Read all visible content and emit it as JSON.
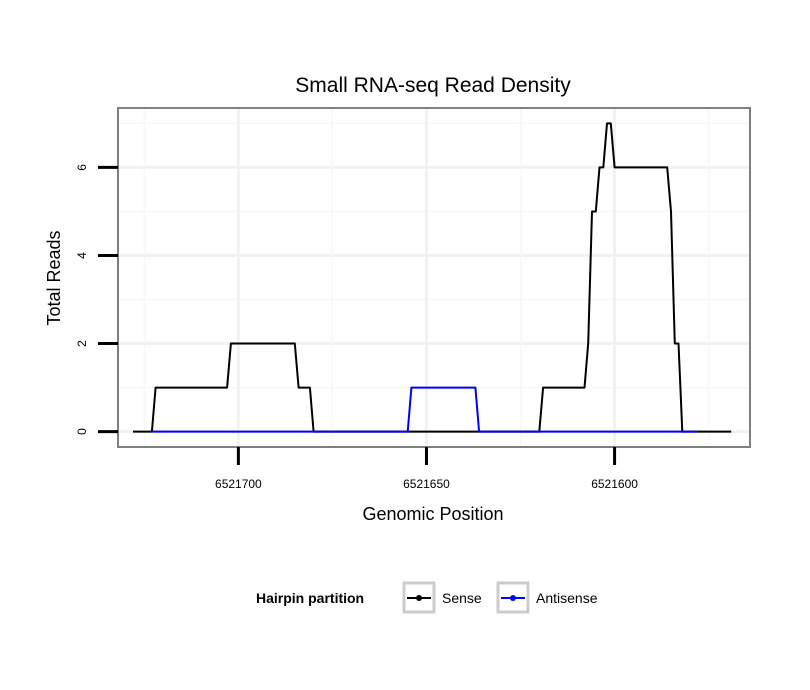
{
  "chart_data": {
    "type": "line",
    "title": "Small RNA-seq Read Density",
    "xlabel": "Genomic Position",
    "ylabel": "Total Reads",
    "x_reversed": true,
    "xlim": [
      6521732,
      6521564
    ],
    "ylim": [
      -0.35,
      7.35
    ],
    "x_ticks": [
      6521700,
      6521650,
      6521600
    ],
    "x_tick_labels": [
      "6521700",
      "6521650",
      "6521600"
    ],
    "y_ticks": [
      0,
      2,
      4,
      6
    ],
    "y_tick_labels": [
      "0",
      "2",
      "4",
      "6"
    ],
    "grid": true,
    "legend": {
      "title": "Hairpin partition",
      "position": "bottom",
      "entries": [
        "Sense",
        "Antisense"
      ]
    },
    "series": [
      {
        "name": "Sense",
        "color": "#000000",
        "x": [
          6521728,
          6521723,
          6521722,
          6521703,
          6521702,
          6521685,
          6521684,
          6521681,
          6521680,
          6521674,
          6521648,
          6521630,
          6521620,
          6521619,
          6521608,
          6521607,
          6521606,
          6521605,
          6521604,
          6521603,
          6521602,
          6521601,
          6521600,
          6521599,
          6521598,
          6521597,
          6521596,
          6521590,
          6521586,
          6521585,
          6521584,
          6521583,
          6521582,
          6521581,
          6521580,
          6521578,
          6521569
        ],
        "y": [
          0,
          0,
          1,
          1,
          2,
          2,
          1,
          1,
          0,
          0,
          0,
          0,
          0,
          1,
          1,
          2,
          5,
          5,
          6,
          6,
          7,
          7,
          6,
          6,
          6,
          6,
          6,
          6,
          6,
          5,
          2,
          2,
          0,
          0,
          0,
          0,
          0
        ]
      },
      {
        "name": "Antisense",
        "color": "#0000ff",
        "x": [
          6521723,
          6521655,
          6521654,
          6521637,
          6521636,
          6521578
        ],
        "y": [
          0,
          0,
          1,
          1,
          0,
          0
        ]
      }
    ]
  }
}
